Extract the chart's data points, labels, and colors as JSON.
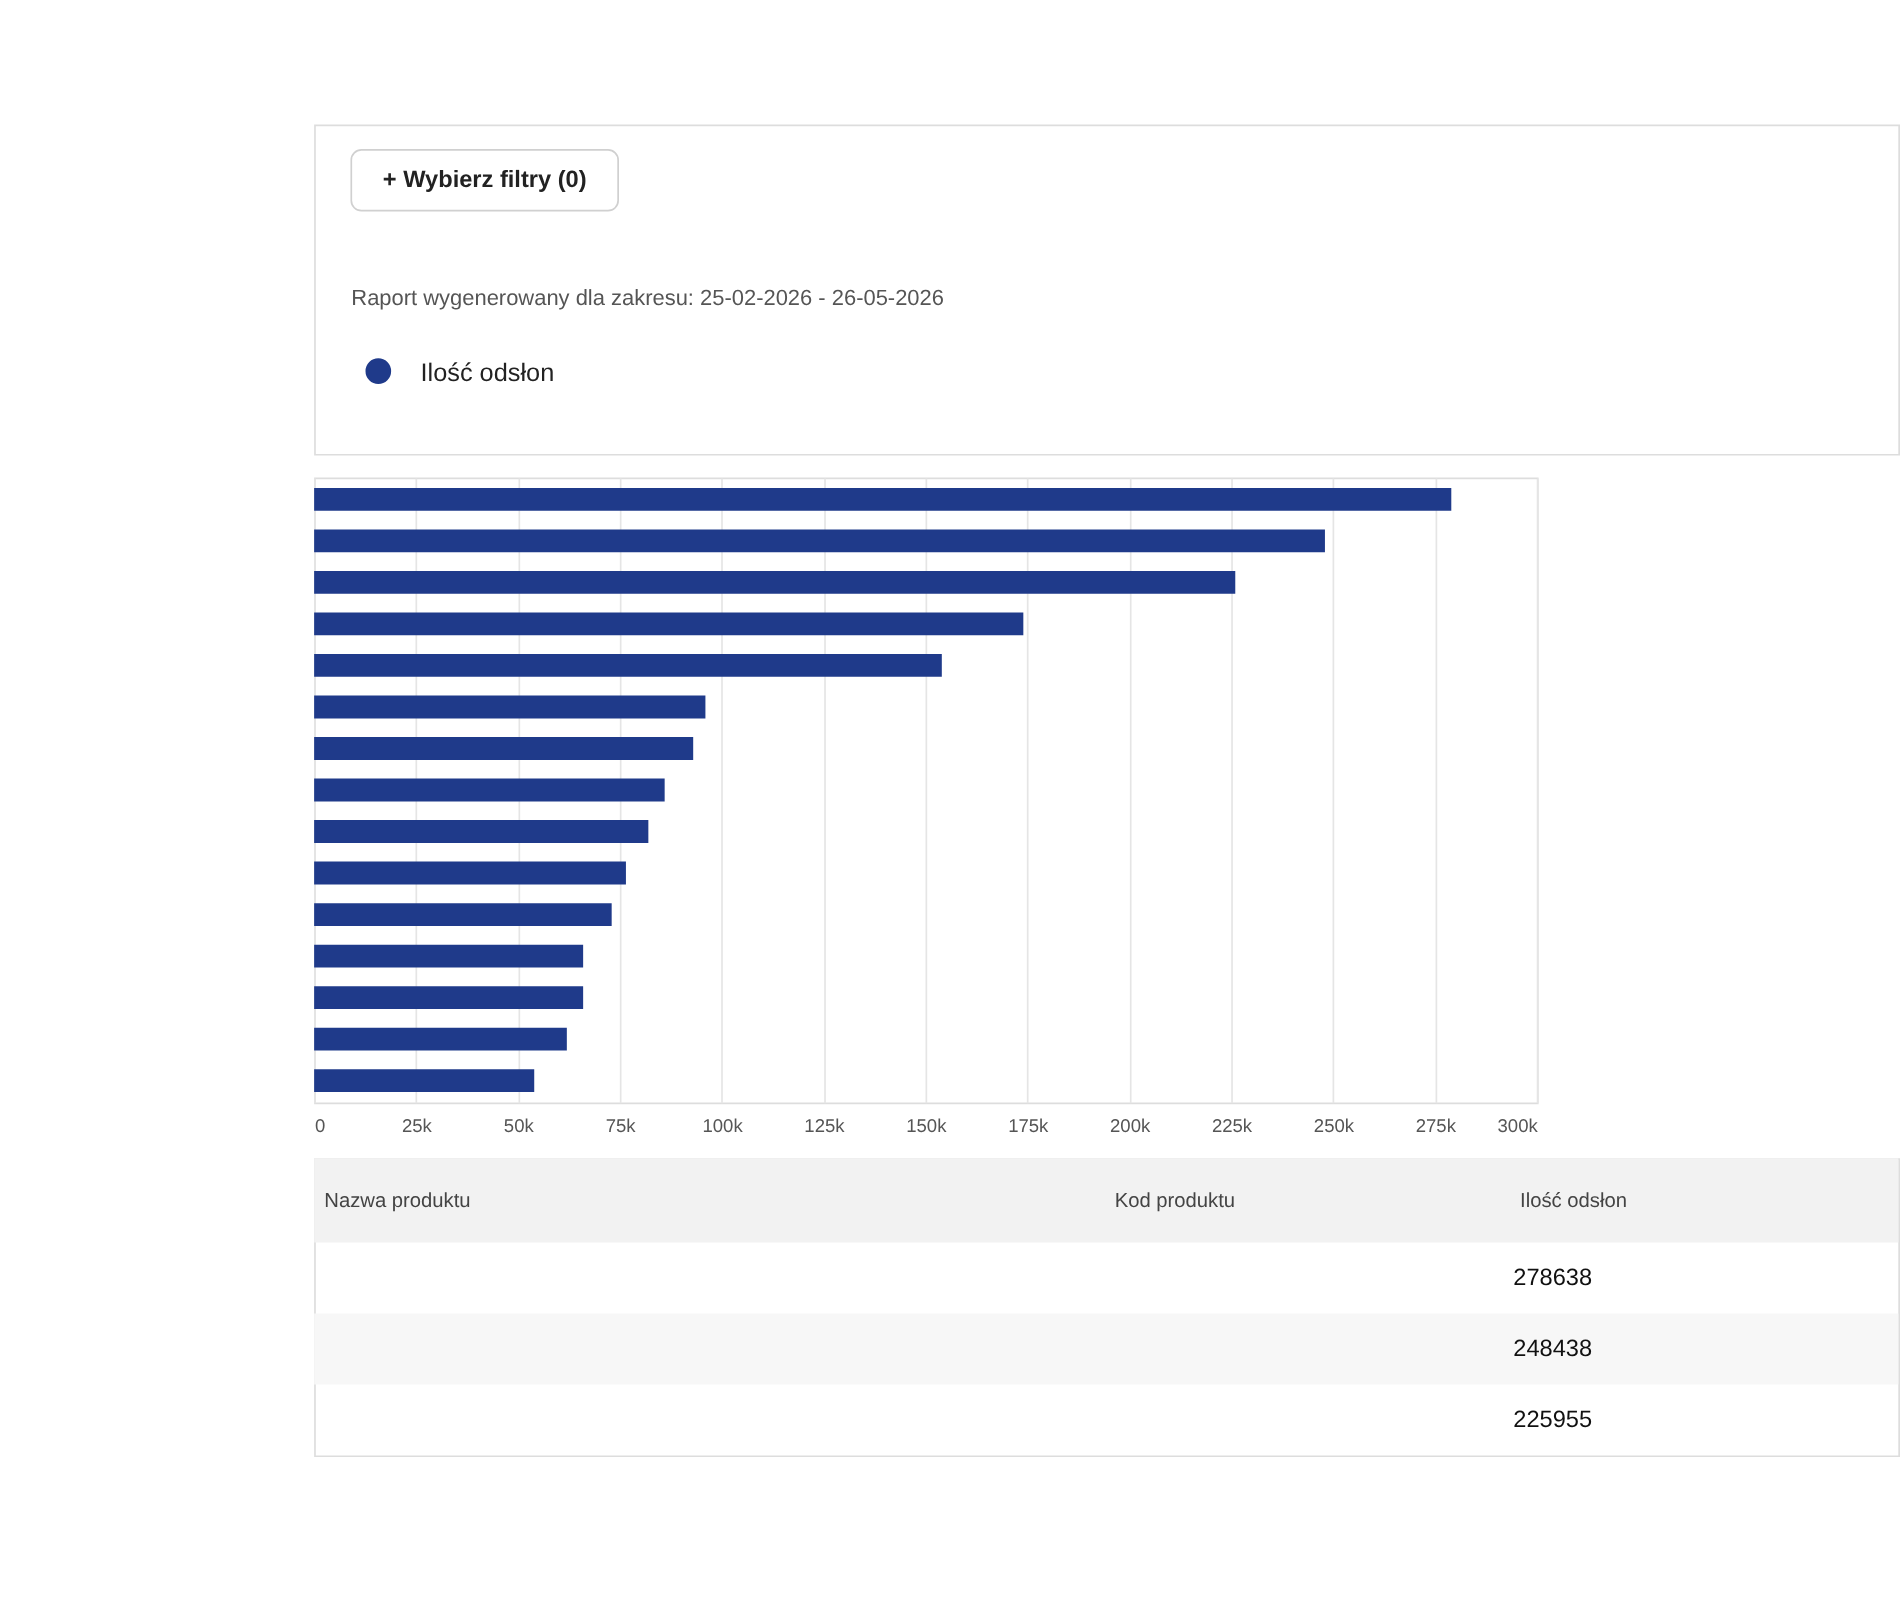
{
  "chart_data": {
    "type": "bar",
    "orientation": "horizontal",
    "subtitle": "Raport wygenerowany dla zakresu: 25-02-2026 - 26-05-2026",
    "annotations": [
      "+ Wybierz filtry (0)",
      "Nazwa produktu",
      "Kod produktu",
      "Ilość odsłon",
      "278638",
      "248438",
      "225955"
    ],
    "categories": [
      null,
      null,
      null,
      null,
      null,
      null,
      null,
      null,
      null,
      null,
      null,
      null,
      null,
      null,
      null
    ],
    "series": [
      {
        "name": "Ilość odsłon",
        "color": "#1f3a8a",
        "values": [
          279000,
          248000,
          226000,
          174000,
          154000,
          96000,
          93000,
          86000,
          82000,
          76500,
          73000,
          66000,
          66000,
          62000,
          54000
        ]
      }
    ],
    "xlim": [
      0,
      300000
    ],
    "xticks": [
      0,
      {
        "value": 25000,
        "label": "25k"
      },
      {
        "value": 50000,
        "label": "50k"
      },
      {
        "value": 75000,
        "label": "75k"
      },
      {
        "value": 100000,
        "label": "100k"
      },
      {
        "value": 125000,
        "label": "125k"
      },
      {
        "value": 150000,
        "label": "150k"
      },
      {
        "value": 175000,
        "label": "175k"
      },
      {
        "value": 200000,
        "label": "200k"
      },
      {
        "value": 225000,
        "label": "225k"
      },
      {
        "value": 250000,
        "label": "250k"
      },
      {
        "value": 275000,
        "label": "275k"
      },
      {
        "value": 300000,
        "label": "300k"
      }
    ],
    "grid": "x",
    "legend": "top left"
  }
}
